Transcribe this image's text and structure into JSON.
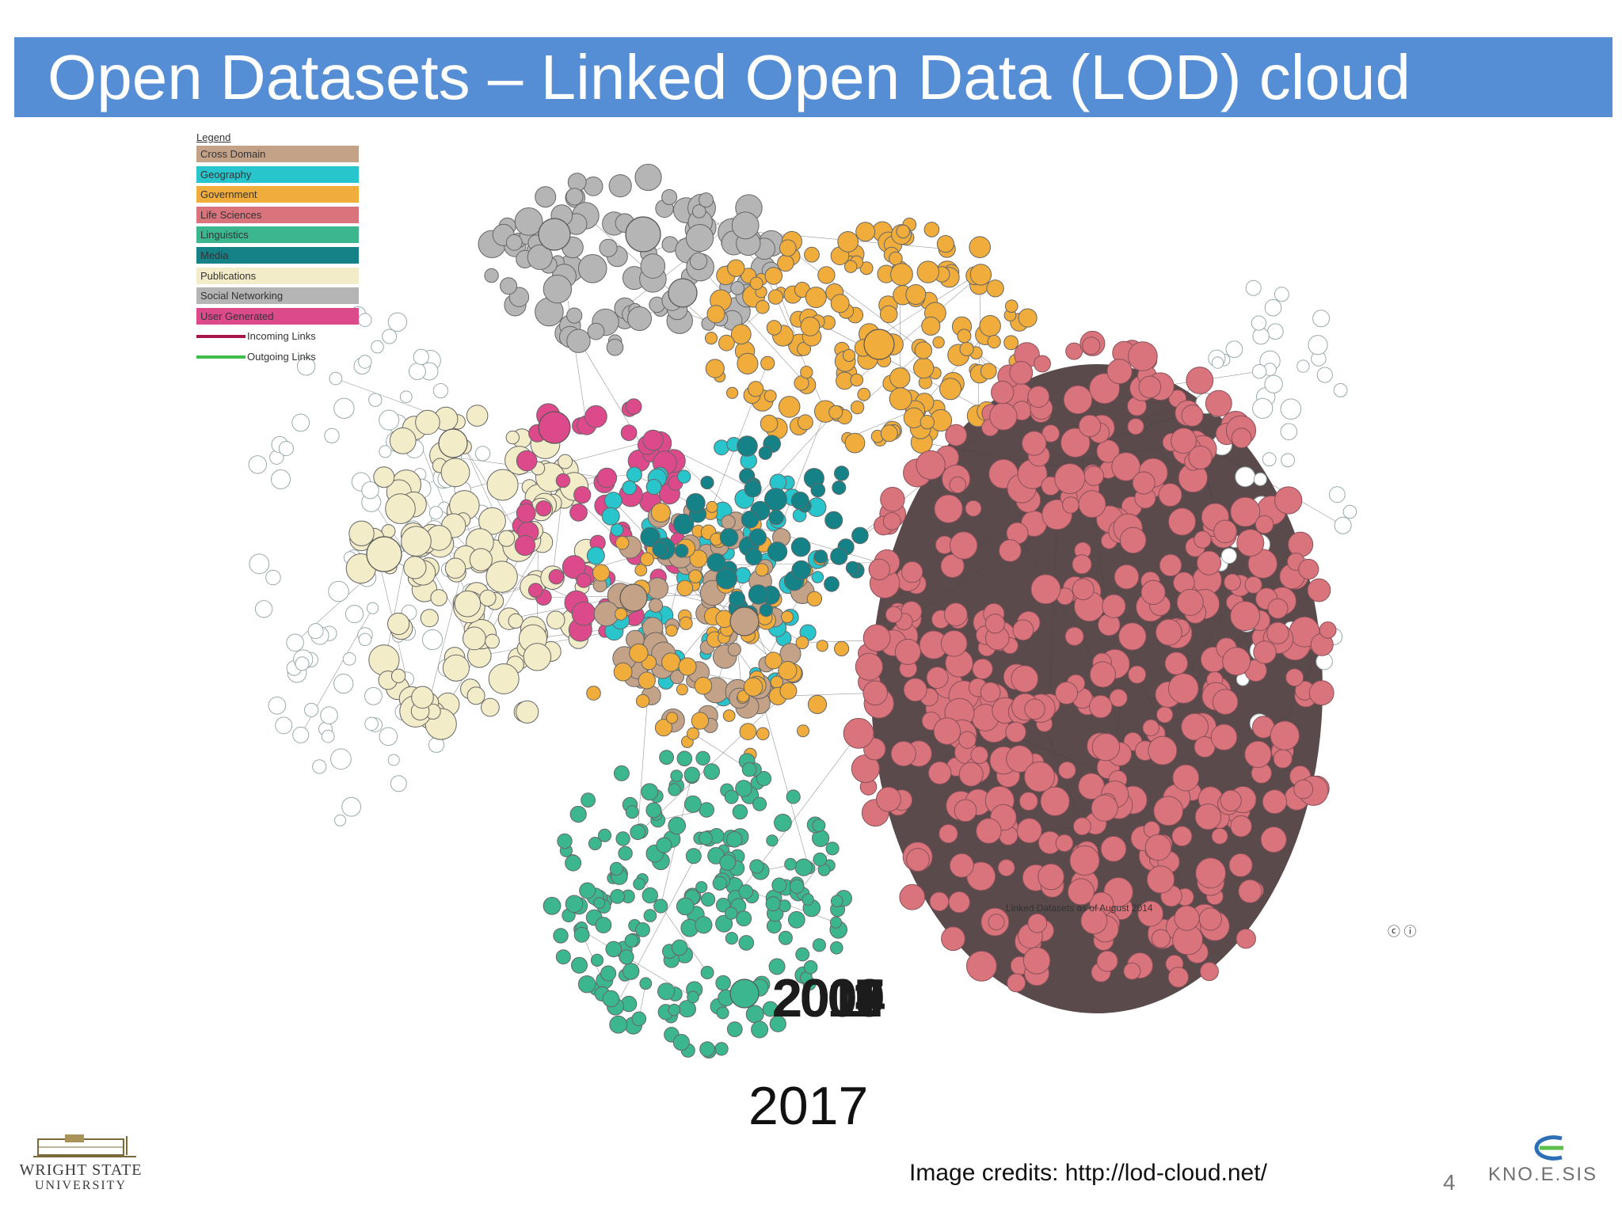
{
  "slide": {
    "title": "Open Datasets – Linked Open Data (LOD) cloud",
    "page_number": "4",
    "credits": "Image credits: http://lod-cloud.net/"
  },
  "legend": {
    "title": "Legend",
    "categories": [
      {
        "label": "Cross Domain",
        "color": "#c4a288"
      },
      {
        "label": "Geography",
        "color": "#29c5cc"
      },
      {
        "label": "Government",
        "color": "#f0ad3c"
      },
      {
        "label": "Life Sciences",
        "color": "#d9747d"
      },
      {
        "label": "Linguistics",
        "color": "#3cb68f"
      },
      {
        "label": "Media",
        "color": "#148287"
      },
      {
        "label": "Publications",
        "color": "#f3ecc9"
      },
      {
        "label": "Social Networking",
        "color": "#b5b5b5"
      },
      {
        "label": "User Generated",
        "color": "#dc4a8c"
      }
    ],
    "links": [
      {
        "label": "Incoming Links",
        "color": "#a8174c"
      },
      {
        "label": "Outgoing Links",
        "color": "#3fbf4a"
      }
    ]
  },
  "diagram": {
    "footnote": "Linked Datasets as of August 2014",
    "cc_icons": "ⓒ ⓘ",
    "overlay_years": [
      "2007",
      "2009",
      "2010",
      "2011",
      "2014"
    ],
    "caption_year": "2017"
  },
  "logos": {
    "wsu_line1": "WRIGHT STATE",
    "wsu_line2": "UNIVERSITY",
    "knoesis_text": "KNO.E.SIS"
  }
}
